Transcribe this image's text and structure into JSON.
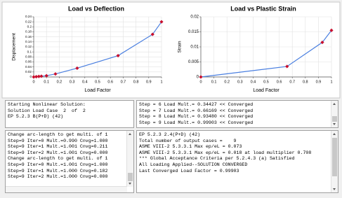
{
  "chart_data": [
    {
      "type": "line",
      "title": "Load vs Deflection",
      "xlabel": "Load Factor",
      "ylabel": "Displacement",
      "x": [
        0,
        0.02,
        0.04,
        0.06,
        0.1,
        0.17,
        0.34,
        0.66,
        0.93,
        1
      ],
      "series": [
        {
          "color": "#4a7fe0",
          "marker_color": "#c8102e",
          "values": [
            0,
            0.001,
            0.002,
            0.003,
            0.005,
            0.012,
            0.035,
            0.085,
            0.17,
            0.22
          ]
        }
      ],
      "xlim": [
        0,
        1
      ],
      "ylim": [
        0,
        0.24
      ],
      "xticks": [
        0,
        0.1,
        0.2,
        0.3,
        0.4,
        0.5,
        0.6,
        0.7,
        0.8,
        0.9,
        1
      ],
      "yticks": [
        0,
        0.02,
        0.04,
        0.06,
        0.08,
        0.1,
        0.12,
        0.14,
        0.16,
        0.18,
        0.2,
        0.22,
        0.24
      ],
      "grid": true
    },
    {
      "type": "line",
      "title": "Load vs Plastic Strain",
      "xlabel": "Load Factor",
      "ylabel": "Strain",
      "x": [
        0,
        0.66,
        0.93,
        1
      ],
      "series": [
        {
          "color": "#4a7fe0",
          "marker_color": "#c8102e",
          "values": [
            0,
            0.0035,
            0.0115,
            0.0155
          ]
        }
      ],
      "xlim": [
        0,
        1
      ],
      "ylim": [
        0,
        0.02
      ],
      "xticks": [
        0,
        0.1,
        0.2,
        0.3,
        0.4,
        0.5,
        0.6,
        0.7,
        0.8,
        0.9,
        1
      ],
      "yticks": [
        0,
        0.005,
        0.01,
        0.015,
        0.02
      ],
      "grid": true
    }
  ],
  "panels": {
    "solution_start": [
      "Starting Nonlinear Solution:",
      "Solution Load Case  2  of  2",
      "EP 5.2.3 B(P+D) (42)"
    ],
    "step_log": [
      "Step = 6 Load Mult.= 0.34427 << Converged",
      "Step = 7 Load Mult.= 0.66169 << Converged",
      "Step = 8 Load Mult.= 0.93480 << Converged",
      "Step = 9 Load Mult.= 0.99903 << Converged"
    ],
    "arc_log": [
      "Change arc-length to get multi. of 1",
      "Step=9 Iter=0 Mult.=0.990 Cnvg=1.000",
      "Step=9 Iter=1 Mult.=1.001 Cnvg=0.211",
      "Step=9 Iter=2 Mult.=1.001 Cnvg=0.000",
      "Change arc-length to get multi. of 1",
      "Step=9 Iter=0 Mult.=1.001 Cnvg=1.000",
      "Step=9 Iter=1 Mult.=1.000 Cnvg=0.182",
      "Step=9 Iter=2 Mult.=1.000 Cnvg=0.000"
    ],
    "summary": [
      "EP 5.2.3 2.4(P+D) (42)",
      "Total number of output cases =    9",
      "ASME VIII-2 5.3.3.1 Max ep/eL = 0.073",
      "ASME VIII-2 5.3.3.1 Max ep/eL = 0.018 at load multiplier 0.708",
      "*** Global Acceptance Criteria per 5.2.4.3 (a) Satisfied",
      "All Loading Applied--SOLUTION CONVERGED",
      "Last Converged Load Factor = 0.99903"
    ]
  }
}
